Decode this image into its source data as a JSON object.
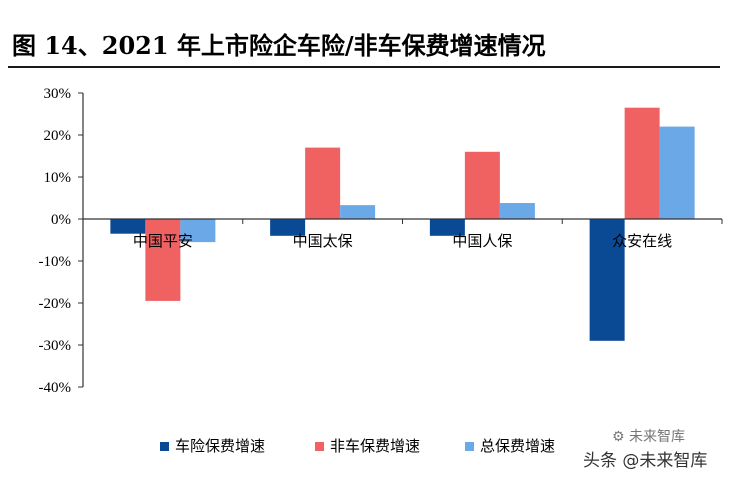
{
  "header": {
    "title": "图 14、2021 年上市险企车险/非车保费增速情况"
  },
  "chart_data": {
    "type": "bar",
    "title": "",
    "xlabel": "",
    "ylabel": "",
    "categories": [
      "中国平安",
      "中国太保",
      "中国人保",
      "众安在线"
    ],
    "series": [
      {
        "name": "车险保费增速",
        "values": [
          -3.5,
          -4.0,
          -4.0,
          -29.0
        ],
        "color": "#0a4a94"
      },
      {
        "name": "非车保费增速",
        "values": [
          -19.5,
          17.0,
          16.0,
          26.5
        ],
        "color": "#f06162"
      },
      {
        "name": "总保费增速",
        "values": [
          -5.5,
          3.3,
          3.8,
          22.0
        ],
        "color": "#6aa8e8"
      }
    ],
    "y_ticks": [
      "30%",
      "20%",
      "10%",
      "0%",
      "-10%",
      "-20%",
      "-30%",
      "-40%"
    ],
    "ylim": [
      -40,
      30
    ],
    "grid": false,
    "legend_position": "bottom"
  },
  "watermark": {
    "text": "头条 @未来智库",
    "logo_text": "未来智库"
  }
}
